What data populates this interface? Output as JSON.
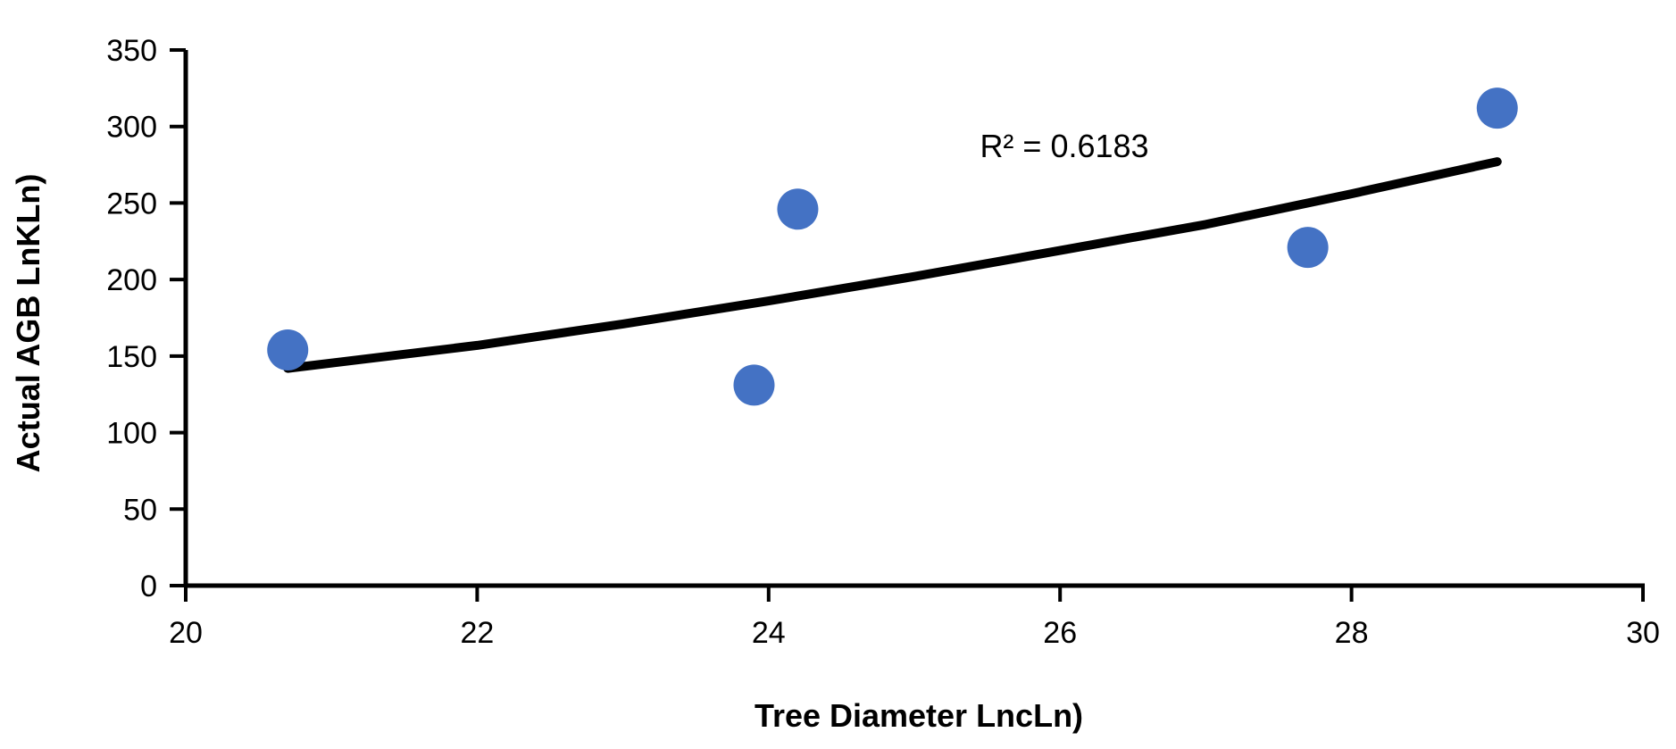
{
  "chart_data": {
    "type": "scatter",
    "title": "",
    "xlabel": "Tree Diameter LncLn)",
    "ylabel": "Actual AGB LnKLn)",
    "xlim": [
      20,
      30
    ],
    "ylim": [
      0,
      350
    ],
    "xticks": [
      20,
      22,
      24,
      26,
      28,
      30
    ],
    "yticks": [
      0,
      50,
      100,
      150,
      200,
      250,
      300,
      350
    ],
    "grid": false,
    "legend": "none",
    "series": [
      {
        "points": [
          {
            "x": 20.7,
            "y": 154
          },
          {
            "x": 23.9,
            "y": 131
          },
          {
            "x": 24.2,
            "y": 246
          },
          {
            "x": 27.7,
            "y": 221
          },
          {
            "x": 29.0,
            "y": 312
          }
        ],
        "color": "#4472C4"
      }
    ],
    "trendline": {
      "type": "exponential",
      "points": [
        {
          "x": 20.7,
          "y": 142
        },
        {
          "x": 22.0,
          "y": 157
        },
        {
          "x": 23.0,
          "y": 171
        },
        {
          "x": 24.0,
          "y": 186
        },
        {
          "x": 25.0,
          "y": 202
        },
        {
          "x": 26.0,
          "y": 219
        },
        {
          "x": 27.0,
          "y": 236
        },
        {
          "x": 28.0,
          "y": 256
        },
        {
          "x": 29.0,
          "y": 277
        }
      ],
      "color": "#000000"
    },
    "annotations": [
      {
        "text": "R² = 0.6183",
        "x": 25.45,
        "y": 280
      }
    ]
  }
}
